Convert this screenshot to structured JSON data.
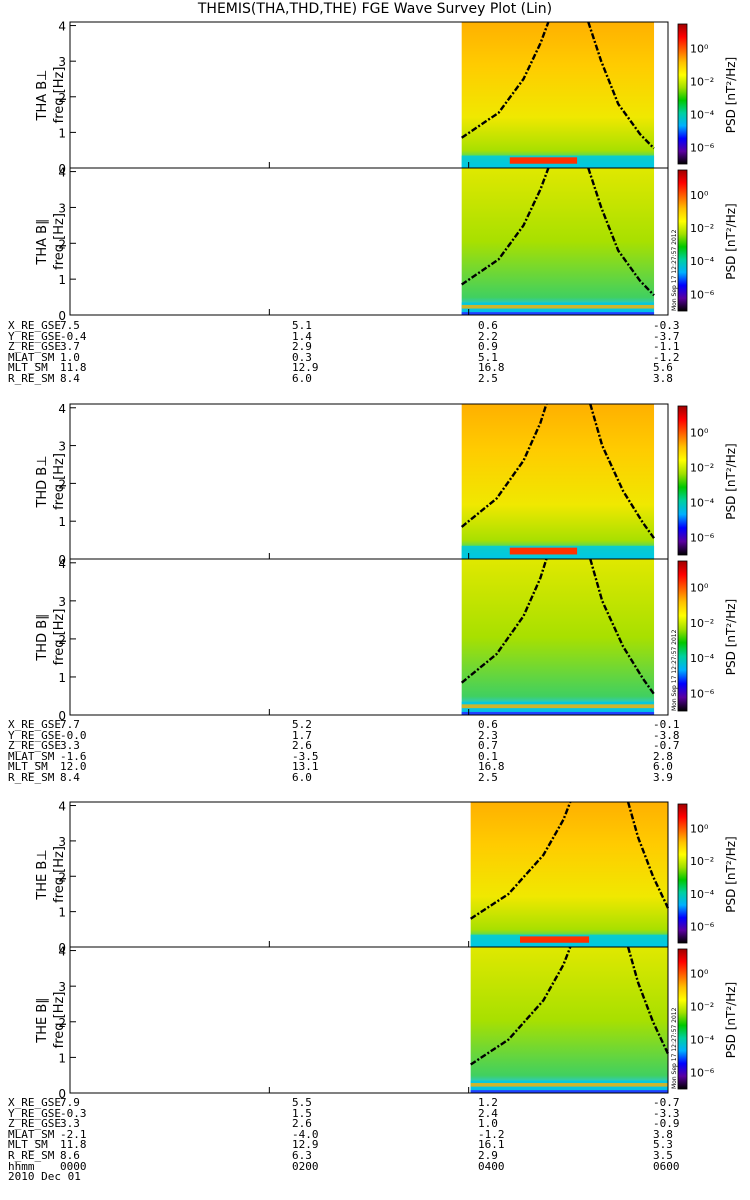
{
  "title": "THEMIS(THA,THD,THE) FGE Wave Survey Plot (Lin)",
  "stamp": "Mon Sep 17 12:27:57 2012",
  "colorbar": {
    "label": "PSD [nT²/Hz]",
    "ticks": [
      "10⁰",
      "10⁻²",
      "10⁻⁴",
      "10⁻⁶"
    ],
    "tick_exponents": [
      0,
      -2,
      -4,
      -6
    ]
  },
  "frequency_axis": {
    "label": "freq [Hz]",
    "ticks": [
      "0",
      "1",
      "2",
      "3",
      "4"
    ],
    "range": [
      0,
      4.1
    ]
  },
  "time_axis": {
    "label": "hhmm",
    "ticks": [
      "0000",
      "0200",
      "0400",
      "0600"
    ],
    "date": "2010 Dec 01",
    "range_hours": [
      0,
      6
    ]
  },
  "probes": [
    {
      "panels": [
        {
          "label": "THA B⊥"
        },
        {
          "label": "THA B∥"
        }
      ],
      "ephemeris": [
        {
          "name": "X_RE_GSE",
          "values": [
            "7.5",
            "5.1",
            "0.6",
            "-0.3"
          ]
        },
        {
          "name": "Y_RE_GSE",
          "values": [
            "-0.4",
            "1.4",
            "2.2",
            "-3.7"
          ]
        },
        {
          "name": "Z_RE_GSE",
          "values": [
            "3.7",
            "2.9",
            "0.9",
            "-1.1"
          ]
        },
        {
          "name": "MLAT_SM",
          "values": [
            "1.0",
            "0.3",
            "5.1",
            "-1.2"
          ]
        },
        {
          "name": "MLT_SM",
          "values": [
            "11.8",
            "12.9",
            "16.8",
            "5.6"
          ]
        },
        {
          "name": "R_RE_SM",
          "values": [
            "8.4",
            "6.0",
            "2.5",
            "3.8"
          ]
        }
      ]
    },
    {
      "panels": [
        {
          "label": "THD B⊥"
        },
        {
          "label": "THD B∥"
        }
      ],
      "ephemeris": [
        {
          "name": "X_RE_GSE",
          "values": [
            "7.7",
            "5.2",
            "0.6",
            "-0.1"
          ]
        },
        {
          "name": "Y_RE_GSE",
          "values": [
            "-0.0",
            "1.7",
            "2.3",
            "-3.8"
          ]
        },
        {
          "name": "Z_RE_GSE",
          "values": [
            "3.3",
            "2.6",
            "0.7",
            "-0.7"
          ]
        },
        {
          "name": "MLAT_SM",
          "values": [
            "-1.6",
            "-3.5",
            "0.1",
            "2.8"
          ]
        },
        {
          "name": "MLT_SM",
          "values": [
            "12.0",
            "13.1",
            "16.8",
            "6.0"
          ]
        },
        {
          "name": "R_RE_SM",
          "values": [
            "8.4",
            "6.0",
            "2.5",
            "3.9"
          ]
        }
      ]
    },
    {
      "panels": [
        {
          "label": "THE B⊥"
        },
        {
          "label": "THE B∥"
        }
      ],
      "ephemeris": [
        {
          "name": "X_RE_GSE",
          "values": [
            "7.9",
            "5.5",
            "1.2",
            "-0.7"
          ]
        },
        {
          "name": "Y_RE_GSE",
          "values": [
            "-0.3",
            "1.5",
            "2.4",
            "-3.3"
          ]
        },
        {
          "name": "Z_RE_GSE",
          "values": [
            "3.3",
            "2.6",
            "1.0",
            "-0.9"
          ]
        },
        {
          "name": "MLAT_SM",
          "values": [
            "-2.1",
            "-4.0",
            "-1.2",
            "3.8"
          ]
        },
        {
          "name": "MLT_SM",
          "values": [
            "11.8",
            "12.9",
            "16.1",
            "5.3"
          ]
        },
        {
          "name": "R_RE_SM",
          "values": [
            "8.6",
            "6.3",
            "2.9",
            "3.5"
          ]
        }
      ]
    }
  ],
  "chart_data": {
    "type": "heatmap",
    "title": "THEMIS(THA,THD,THE) FGE Wave Survey Plot (Lin)",
    "x_range_hours": [
      0,
      6
    ],
    "y_range_hz": [
      0,
      4.1
    ],
    "color_scale": "log10",
    "color_range_exponent": [
      -7,
      1.5
    ],
    "colormap": [
      "#000000",
      "#5a00a0",
      "#0000ff",
      "#00b0ff",
      "#00d0a0",
      "#00c800",
      "#a0e000",
      "#ffff00",
      "#ffc000",
      "#ff6000",
      "#ff0000",
      "#a00000"
    ],
    "data_coverage": [
      {
        "start_hour": 3.93,
        "end_hour": 5.86
      },
      {
        "start_hour": 3.93,
        "end_hour": 5.86
      },
      {
        "start_hour": 4.02,
        "end_hour": 6.0
      }
    ],
    "overlay_curves_note": "dash-dot cyclotron frequency curves rising toward panel edges",
    "curve_points_hours": [
      [
        [
          3.93,
          0.85
        ],
        [
          4.3,
          1.55
        ],
        [
          4.55,
          2.5
        ],
        [
          4.72,
          3.5
        ],
        [
          4.8,
          4.1
        ],
        [
          5.2,
          4.1
        ],
        [
          5.33,
          3.0
        ],
        [
          5.5,
          1.8
        ],
        [
          5.72,
          0.95
        ],
        [
          5.86,
          0.55
        ]
      ],
      [
        [
          3.93,
          0.85
        ],
        [
          4.28,
          1.6
        ],
        [
          4.55,
          2.6
        ],
        [
          4.72,
          3.6
        ],
        [
          4.78,
          4.1
        ],
        [
          5.22,
          4.1
        ],
        [
          5.34,
          3.0
        ],
        [
          5.55,
          1.8
        ],
        [
          5.75,
          0.95
        ],
        [
          5.86,
          0.55
        ]
      ],
      [
        [
          4.02,
          0.8
        ],
        [
          4.4,
          1.5
        ],
        [
          4.75,
          2.6
        ],
        [
          4.95,
          3.6
        ],
        [
          5.02,
          4.1
        ],
        [
          5.6,
          4.1
        ],
        [
          5.7,
          3.1
        ],
        [
          5.85,
          2.0
        ],
        [
          6.0,
          1.1
        ]
      ]
    ]
  }
}
